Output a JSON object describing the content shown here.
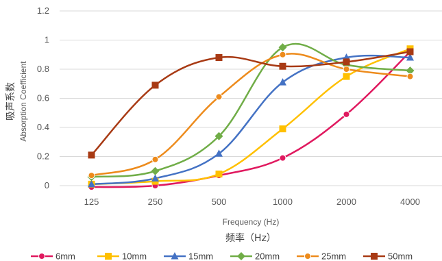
{
  "chart_data": {
    "type": "line",
    "categories": [
      "125",
      "250",
      "500",
      "1000",
      "2000",
      "4000"
    ],
    "xlabel": "Frequency (Hz)",
    "xlabel_cn": "频率（Hz）",
    "ylabel": "Absorption Coefficient",
    "ylabel_cn": "吸声系数",
    "ylim": [
      0,
      1.2
    ],
    "yticks": [
      "0",
      "0.2",
      "0.4",
      "0.6",
      "0.8",
      "1",
      "1.2"
    ],
    "grid": "horizontal",
    "legend_position": "bottom",
    "series": [
      {
        "name": "6mm",
        "color": "#e0195f",
        "marker": "circle",
        "values": [
          -0.01,
          0.0,
          0.07,
          0.19,
          0.49,
          0.92
        ]
      },
      {
        "name": "10mm",
        "color": "#ffc000",
        "marker": "square",
        "values": [
          0.01,
          0.03,
          0.08,
          0.39,
          0.75,
          0.94
        ]
      },
      {
        "name": "15mm",
        "color": "#4472c4",
        "marker": "triangle",
        "values": [
          0.01,
          0.05,
          0.22,
          0.71,
          0.88,
          0.88
        ]
      },
      {
        "name": "20mm",
        "color": "#70ad47",
        "marker": "diamond",
        "values": [
          0.06,
          0.1,
          0.34,
          0.95,
          0.83,
          0.79
        ]
      },
      {
        "name": "25mm",
        "color": "#ed8b1c",
        "marker": "circle",
        "values": [
          0.07,
          0.18,
          0.61,
          0.9,
          0.8,
          0.75
        ]
      },
      {
        "name": "50mm",
        "color": "#a83a14",
        "marker": "square",
        "values": [
          0.21,
          0.69,
          0.88,
          0.82,
          0.85,
          0.92
        ]
      }
    ]
  }
}
